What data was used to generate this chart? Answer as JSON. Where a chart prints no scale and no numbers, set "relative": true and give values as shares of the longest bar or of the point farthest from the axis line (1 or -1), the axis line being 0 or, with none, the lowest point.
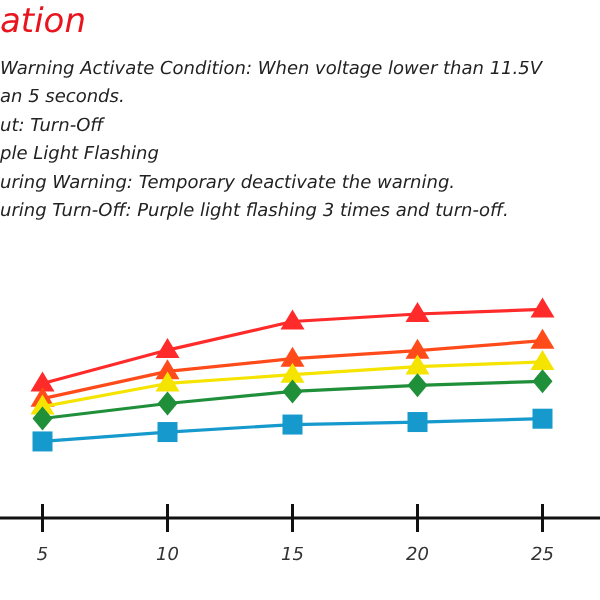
{
  "chart_data": {
    "type": "line",
    "title": "ation",
    "annotations": [
      "Warning Activate Condition: When voltage lower than 11.5V",
      "an 5 seconds.",
      "ut: Turn-Off",
      "ple Light Flashing",
      "uring Warning: Temporary deactivate the warning.",
      "uring Turn-Off: Purple light flashing 3 times and turn-off."
    ],
    "relative": true,
    "x": [
      5,
      10,
      15,
      20,
      25
    ],
    "xlim": [
      3.3,
      27.3
    ],
    "xticks": [
      5,
      10,
      15,
      20,
      25
    ],
    "tick_labels": "x",
    "grid": false,
    "line_style": "solid",
    "series": [
      {
        "color": "#ff2a2a",
        "marker": "triangle",
        "values": [
          0.645,
          0.805,
          0.942,
          0.978,
          1
        ]
      },
      {
        "color": "#ff4a1a",
        "marker": "triangle",
        "values": [
          0.572,
          0.703,
          0.764,
          0.802,
          0.85
        ]
      },
      {
        "color": "#f5e400",
        "marker": "triangle",
        "values": [
          0.534,
          0.645,
          0.687,
          0.726,
          0.748
        ]
      },
      {
        "color": "#1f8f3a",
        "marker": "diamond",
        "values": [
          0.477,
          0.549,
          0.607,
          0.636,
          0.655
        ]
      },
      {
        "color": "#1699cc",
        "marker": "square",
        "values": [
          0.367,
          0.412,
          0.448,
          0.46,
          0.476
        ]
      }
    ]
  }
}
